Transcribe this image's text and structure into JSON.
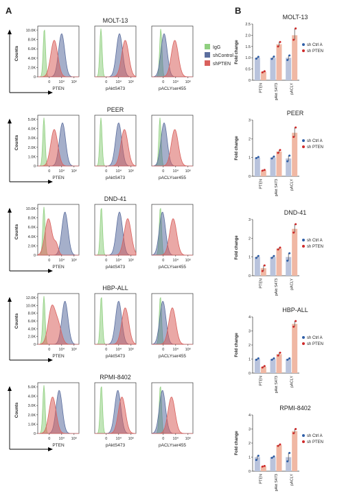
{
  "panels": {
    "a_label": "A",
    "b_label": "B"
  },
  "flow": {
    "ylabel": "Counts",
    "xlabels": [
      "PTEN",
      "pAktS473",
      "pACLYser455"
    ],
    "xticks": [
      "0",
      "10⁴",
      "10⁶"
    ],
    "legend": [
      {
        "name": "IgG",
        "color": "#8fcf7f"
      },
      {
        "name": "shControl",
        "color": "#5b6e9e"
      },
      {
        "name": "shPTEN",
        "color": "#d9605c"
      }
    ]
  },
  "bars": {
    "ylabel": "Fold change",
    "categories": [
      "PTEN",
      "pAkt S473",
      "pACLY"
    ],
    "legend": [
      {
        "name": "sh Ctrl A",
        "color": "#2f5fa8"
      },
      {
        "name": "sh PTEN",
        "color": "#cf2a2a"
      }
    ],
    "ctrl_color": "#b9c3dc",
    "pten_color": "#f0b8a4"
  },
  "chart_data": [
    {
      "type": "area",
      "title": "MOLT-13",
      "xlabel": "PTEN",
      "ylabel": "Counts",
      "yticks": [
        "0",
        "2.0K",
        "4.0K",
        "6.0K",
        "8.0K",
        "10.0K"
      ],
      "series": [
        {
          "name": "IgG",
          "peak": 0.16
        },
        {
          "name": "shControl",
          "peak": 0.58
        },
        {
          "name": "shPTEN",
          "peak": 0.4
        }
      ]
    },
    {
      "type": "area",
      "title": "MOLT-13",
      "xlabel": "pAktS473",
      "series": [
        {
          "name": "IgG",
          "peak": 0.15
        },
        {
          "name": "shControl",
          "peak": 0.6
        },
        {
          "name": "shPTEN",
          "peak": 0.74
        }
      ]
    },
    {
      "type": "area",
      "title": "MOLT-13",
      "xlabel": "pACLYser455",
      "series": [
        {
          "name": "IgG",
          "peak": 0.22
        },
        {
          "name": "shControl",
          "peak": 0.3
        },
        {
          "name": "shPTEN",
          "peak": 0.56
        }
      ]
    },
    {
      "type": "area",
      "title": "PEER",
      "xlabel": "PTEN",
      "ylabel": "Counts",
      "yticks": [
        "0",
        "1.0K",
        "2.0K",
        "3.0K",
        "4.0K",
        "5.0K"
      ],
      "series": [
        {
          "name": "IgG",
          "peak": 0.15
        },
        {
          "name": "shControl",
          "peak": 0.6
        },
        {
          "name": "shPTEN",
          "peak": 0.4
        }
      ]
    },
    {
      "type": "area",
      "title": "PEER",
      "xlabel": "pAktS473",
      "series": [
        {
          "name": "IgG",
          "peak": 0.15
        },
        {
          "name": "shControl",
          "peak": 0.58
        },
        {
          "name": "shPTEN",
          "peak": 0.72
        }
      ]
    },
    {
      "type": "area",
      "title": "PEER",
      "xlabel": "pACLYser455",
      "series": [
        {
          "name": "IgG",
          "peak": 0.2
        },
        {
          "name": "shControl",
          "peak": 0.3
        },
        {
          "name": "shPTEN",
          "peak": 0.56
        }
      ]
    },
    {
      "type": "area",
      "title": "DND-41",
      "xlabel": "PTEN",
      "ylabel": "Counts",
      "yticks": [
        "0",
        "2.0K",
        "4.0K",
        "6.0K",
        "8.0K",
        "10.0K"
      ],
      "series": [
        {
          "name": "IgG",
          "peak": 0.15
        },
        {
          "name": "shControl",
          "peak": 0.66
        },
        {
          "name": "shPTEN",
          "peak": 0.26
        }
      ]
    },
    {
      "type": "area",
      "title": "DND-41",
      "xlabel": "pAktS473",
      "series": [
        {
          "name": "IgG",
          "peak": 0.16
        },
        {
          "name": "shControl",
          "peak": 0.6
        },
        {
          "name": "shPTEN",
          "peak": 0.8
        }
      ]
    },
    {
      "type": "area",
      "title": "DND-41",
      "xlabel": "pACLYser455",
      "series": [
        {
          "name": "IgG",
          "peak": 0.21
        },
        {
          "name": "shControl",
          "peak": 0.26
        },
        {
          "name": "shPTEN",
          "peak": 0.52
        }
      ]
    },
    {
      "type": "area",
      "title": "HBP-ALL",
      "xlabel": "PTEN",
      "ylabel": "Counts",
      "yticks": [
        "0",
        "2.0K",
        "4.0K",
        "6.0K",
        "8.0K",
        "10.0K",
        "12.0K"
      ],
      "series": [
        {
          "name": "IgG",
          "peak": 0.15
        },
        {
          "name": "shControl",
          "peak": 0.66
        },
        {
          "name": "shPTEN",
          "peak": 0.34
        }
      ]
    },
    {
      "type": "area",
      "title": "HBP-ALL",
      "xlabel": "pAktS473",
      "series": [
        {
          "name": "IgG",
          "peak": 0.16
        },
        {
          "name": "shControl",
          "peak": 0.58
        },
        {
          "name": "shPTEN",
          "peak": 0.74
        }
      ]
    },
    {
      "type": "area",
      "title": "HBP-ALL",
      "xlabel": "pACLYser455",
      "series": [
        {
          "name": "IgG",
          "peak": 0.21
        },
        {
          "name": "shControl",
          "peak": 0.27
        },
        {
          "name": "shPTEN",
          "peak": 0.5
        }
      ]
    },
    {
      "type": "area",
      "title": "RPMI-8402",
      "xlabel": "PTEN",
      "ylabel": "Counts",
      "yticks": [
        "0",
        "1.0K",
        "2.0K",
        "3.0K",
        "4.0K",
        "5.0K"
      ],
      "series": [
        {
          "name": "IgG",
          "peak": 0.15
        },
        {
          "name": "shControl",
          "peak": 0.52
        },
        {
          "name": "shPTEN",
          "peak": 0.36
        }
      ]
    },
    {
      "type": "area",
      "title": "RPMI-8402",
      "xlabel": "pAktS473",
      "series": [
        {
          "name": "IgG",
          "peak": 0.16
        },
        {
          "name": "shControl",
          "peak": 0.56
        },
        {
          "name": "shPTEN",
          "peak": 0.66
        }
      ]
    },
    {
      "type": "area",
      "title": "RPMI-8402",
      "xlabel": "pACLYser455",
      "series": [
        {
          "name": "IgG",
          "peak": 0.21
        },
        {
          "name": "shControl",
          "peak": 0.26
        },
        {
          "name": "shPTEN",
          "peak": 0.48
        }
      ]
    },
    {
      "type": "bar",
      "title": "MOLT-13",
      "ylabel": "Fold change",
      "categories": [
        "PTEN",
        "pAkt S473",
        "pACLY"
      ],
      "ylim": [
        0,
        2.5
      ],
      "yticks": [
        "0",
        "0.5",
        "1.0",
        "1.5",
        "2.0",
        "2.5"
      ],
      "series": [
        {
          "name": "sh Ctrl A",
          "values": [
            1.0,
            1.0,
            1.0
          ],
          "points": [
            [
              0.96,
              1.04
            ],
            [
              0.95,
              1.05
            ],
            [
              0.9,
              1.1
            ]
          ]
        },
        {
          "name": "sh PTEN",
          "values": [
            0.38,
            1.6,
            2.0
          ],
          "points": [
            [
              0.35,
              0.4
            ],
            [
              1.5,
              1.7
            ],
            [
              1.8,
              2.3
            ]
          ]
        }
      ]
    },
    {
      "type": "bar",
      "title": "PEER",
      "ylabel": "Fold change",
      "categories": [
        "PTEN",
        "pAkt S473",
        "pACLY"
      ],
      "ylim": [
        0,
        3
      ],
      "yticks": [
        "0",
        "1",
        "2",
        "3"
      ],
      "series": [
        {
          "name": "sh Ctrl A",
          "values": [
            1.0,
            1.0,
            0.95
          ],
          "points": [
            [
              0.97,
              1.03
            ],
            [
              0.95,
              1.05
            ],
            [
              0.8,
              1.1
            ]
          ]
        },
        {
          "name": "sh PTEN",
          "values": [
            0.32,
            1.32,
            2.32
          ],
          "points": [
            [
              0.3,
              0.34
            ],
            [
              1.25,
              1.4
            ],
            [
              2.1,
              2.6
            ]
          ]
        }
      ]
    },
    {
      "type": "bar",
      "title": "DND-41",
      "ylabel": "Fold change",
      "categories": [
        "PTEN",
        "pAkt S473",
        "pACLY"
      ],
      "ylim": [
        0,
        3
      ],
      "yticks": [
        "0",
        "1",
        "2",
        "3"
      ],
      "series": [
        {
          "name": "sh Ctrl A",
          "values": [
            1.0,
            1.0,
            1.0
          ],
          "points": [
            [
              0.95,
              1.05
            ],
            [
              0.95,
              1.05
            ],
            [
              0.8,
              1.2
            ]
          ]
        },
        {
          "name": "sh PTEN",
          "values": [
            0.4,
            1.45,
            2.5
          ],
          "points": [
            [
              0.25,
              0.55
            ],
            [
              1.4,
              1.5
            ],
            [
              2.3,
              2.75
            ]
          ]
        }
      ]
    },
    {
      "type": "bar",
      "title": "HBP-ALL",
      "ylabel": "Fold change",
      "categories": [
        "PTEN",
        "pAkt S473",
        "pACLY"
      ],
      "ylim": [
        0,
        4
      ],
      "yticks": [
        "0",
        "1",
        "2",
        "3",
        "4"
      ],
      "series": [
        {
          "name": "sh Ctrl A",
          "values": [
            1.0,
            1.0,
            1.0
          ],
          "points": [
            [
              0.95,
              1.05
            ],
            [
              0.95,
              1.05
            ],
            [
              0.95,
              1.05
            ]
          ]
        },
        {
          "name": "sh PTEN",
          "values": [
            0.45,
            1.35,
            3.5
          ],
          "points": [
            [
              0.4,
              0.5
            ],
            [
              1.25,
              1.45
            ],
            [
              3.3,
              3.7
            ]
          ]
        }
      ]
    },
    {
      "type": "bar",
      "title": "RPMI-8402",
      "ylabel": "Fold change",
      "categories": [
        "PTEN",
        "pAkt S473",
        "pACLY"
      ],
      "ylim": [
        0,
        4
      ],
      "yticks": [
        "0",
        "1",
        "2",
        "3",
        "4"
      ],
      "series": [
        {
          "name": "sh Ctrl A",
          "values": [
            1.0,
            1.0,
            1.0
          ],
          "points": [
            [
              0.8,
              1.1
            ],
            [
              0.95,
              1.05
            ],
            [
              0.7,
              1.3
            ]
          ]
        },
        {
          "name": "sh PTEN",
          "values": [
            0.35,
            1.85,
            2.85
          ],
          "points": [
            [
              0.33,
              0.37
            ],
            [
              1.8,
              1.9
            ],
            [
              2.7,
              3.0
            ]
          ]
        }
      ]
    }
  ]
}
